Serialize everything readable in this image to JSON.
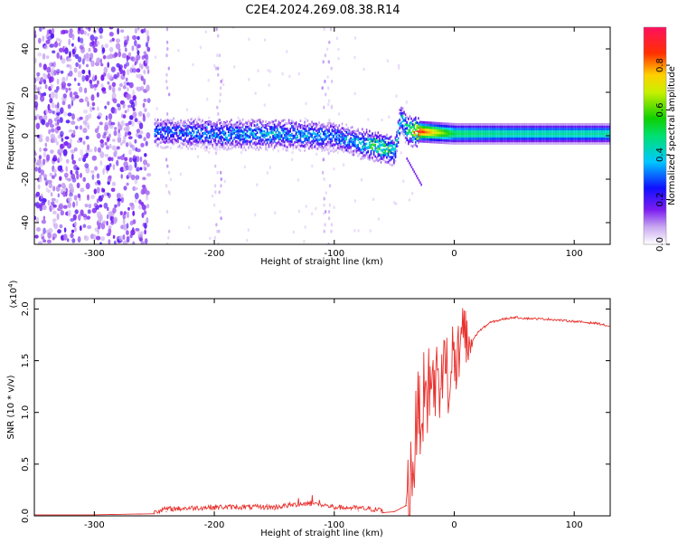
{
  "title": "C2E4.2024.269.08.38.R14",
  "chart_data": [
    {
      "type": "heatmap",
      "xlabel": "Height of straight line (km)",
      "ylabel": "Frequency (Hz)",
      "xlim": [
        -350,
        130
      ],
      "ylim": [
        -50,
        50
      ],
      "xticks": [
        -300,
        -200,
        -100,
        0,
        100
      ],
      "yticks": [
        -40,
        -20,
        0,
        20,
        40
      ],
      "colorbar": {
        "label": "Normalized spectral amplitude",
        "range": [
          0,
          0.97
        ],
        "ticks": [
          "0.0",
          "0.2",
          "0.4",
          "0.6",
          "0.8"
        ],
        "tick_values": [
          0,
          0.2,
          0.4,
          0.6,
          0.8
        ],
        "colormap": "rainbow (white-violet-blue-cyan-green-yellow-red-magenta)"
      },
      "signal_track": {
        "x": [
          -250,
          -200,
          -150,
          -100,
          -80,
          -60,
          -50,
          -45,
          -40,
          -30,
          0,
          50,
          130
        ],
        "center_hz": [
          2,
          1,
          1,
          0,
          -3,
          -5,
          -7,
          9,
          3,
          2,
          1,
          1,
          1
        ],
        "peak_amplitude": [
          0.3,
          0.35,
          0.4,
          0.35,
          0.4,
          0.6,
          0.5,
          0.4,
          0.5,
          0.9,
          0.5,
          0.45,
          0.45
        ]
      },
      "noise_region_x": [
        -350,
        -255
      ]
    },
    {
      "type": "line",
      "xlabel": "Height of straight line (km)",
      "ylabel": "SNR (10 * v/v)",
      "y_multiplier": "(x10",
      "y_multiplier_exp": "4",
      "y_multiplier_close": ")",
      "xlim": [
        -350,
        130
      ],
      "ylim": [
        0,
        2.1
      ],
      "xticks": [
        -300,
        -200,
        -100,
        0,
        100
      ],
      "yticks": [
        "0.0",
        "0.5",
        "1.0",
        "1.5",
        "2.0"
      ],
      "ytick_values": [
        0,
        0.5,
        1.0,
        1.5,
        2.0
      ],
      "color": "#e8302c",
      "series": [
        {
          "x": [
            -350,
            -300,
            -250,
            -240,
            -200,
            -150,
            -120,
            -100,
            -80,
            -60,
            -50,
            -40,
            -35,
            -30,
            -25,
            -20,
            -10,
            0,
            10,
            20,
            30,
            40,
            50,
            60,
            80,
            100,
            120,
            130
          ],
          "y": [
            0.01,
            0.01,
            0.02,
            0.04,
            0.06,
            0.06,
            0.1,
            0.06,
            0.05,
            0.03,
            0.04,
            0.1,
            0.4,
            0.95,
            1.1,
            1.2,
            1.3,
            1.45,
            1.6,
            1.78,
            1.87,
            1.9,
            1.92,
            1.91,
            1.9,
            1.88,
            1.86,
            1.83
          ]
        }
      ]
    }
  ]
}
